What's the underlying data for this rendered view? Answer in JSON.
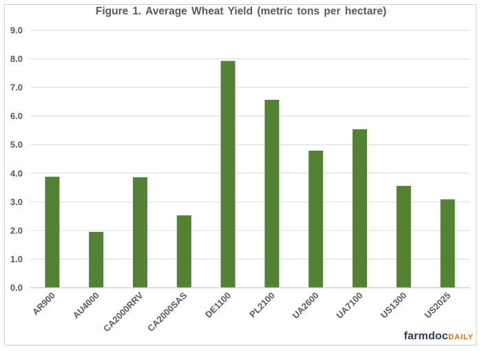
{
  "chart_data": {
    "type": "bar",
    "title": "Figure  1. Average Wheat Yield (metric  tons  per  hectare)",
    "categories": [
      "AR900",
      "AU4000",
      "CA2000RRV",
      "CA2000SAS",
      "DE1100",
      "PL2100",
      "UA2600",
      "UA7100",
      "US1300",
      "US2025"
    ],
    "values": [
      3.88,
      1.95,
      3.86,
      2.53,
      7.93,
      6.57,
      4.79,
      5.54,
      3.56,
      3.09
    ],
    "ylim": [
      0,
      9
    ],
    "yticks": [
      "0.0",
      "1.0",
      "2.0",
      "3.0",
      "4.0",
      "5.0",
      "6.0",
      "7.0",
      "8.0",
      "9.0"
    ],
    "grid": true,
    "legend": "none",
    "bar_color": "#548235",
    "xlabel": "",
    "ylabel": ""
  },
  "branding": {
    "logo_part1": "farmdoc",
    "logo_part2": "DAILY"
  }
}
